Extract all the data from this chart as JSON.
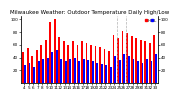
{
  "title": "Milwaukee Weather: Outdoor Temperature Daily High/Low",
  "high_color": "#ff0000",
  "low_color": "#0000ff",
  "dashed_line_color": "#aaaaaa",
  "background_color": "#ffffff",
  "ylim": [
    0,
    105
  ],
  "yticks": [
    20,
    40,
    60,
    80,
    100
  ],
  "dashed_lines": [
    20.5,
    22.5
  ],
  "highs": [
    48,
    55,
    42,
    52,
    60,
    68,
    95,
    100,
    72,
    65,
    60,
    65,
    60,
    65,
    62,
    60,
    58,
    56,
    53,
    50,
    75,
    70,
    82,
    78,
    73,
    70,
    67,
    65,
    62,
    75
  ],
  "lows": [
    28,
    32,
    25,
    35,
    38,
    40,
    48,
    52,
    38,
    35,
    38,
    40,
    35,
    38,
    36,
    35,
    32,
    30,
    28,
    25,
    42,
    36,
    45,
    42,
    38,
    35,
    32,
    37,
    35,
    45
  ],
  "n_bars": 30,
  "start_day": 4,
  "legend_dot_high": ".",
  "legend_dot_low": ".",
  "bar_width": 0.4
}
